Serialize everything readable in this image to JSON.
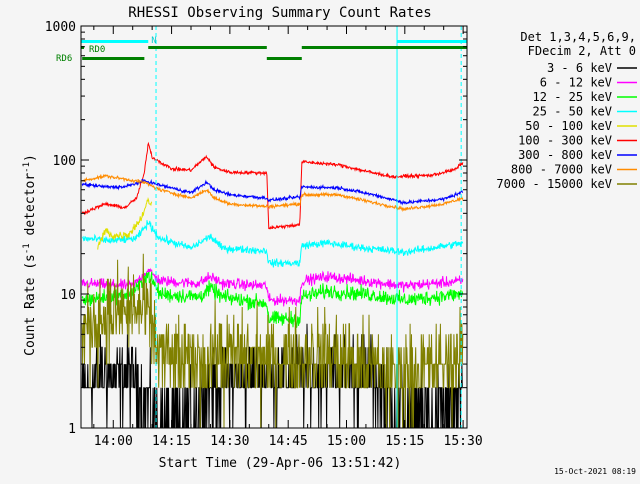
{
  "chart_data": {
    "type": "line",
    "title": "RHESSI Observing Summary Count Rates",
    "xlabel": "Start Time (29-Apr-06 13:51:42)",
    "ylabel_main": "Count Rate (s",
    "ylabel_sup1": "-1",
    "ylabel_mid": " detector",
    "ylabel_sup2": "-1",
    "ylabel_end": ")",
    "y_scale": "log",
    "ylim": [
      1,
      1000
    ],
    "xlim": [
      "13:51:42",
      "15:31:00"
    ],
    "y_ticks": [
      "1",
      "10",
      "100",
      "1000"
    ],
    "x_ticks": [
      "14:00",
      "14:15",
      "14:30",
      "14:45",
      "15:00",
      "15:15",
      "15:30"
    ],
    "legend_header": [
      "Det 1,3,4,5,6,9,",
      "FDecim 2, Att 0"
    ],
    "legend_placement": "right",
    "footer_timestamp": "15-Oct-2021 08:19",
    "flag_labels": {
      "n": "N",
      "rd0": "RD0",
      "rd6": "RD6"
    },
    "flags": {
      "night": [
        [
          "13:51:42",
          "14:09:00"
        ],
        [
          "15:13:00",
          "15:31:00"
        ]
      ],
      "rd0": [
        [
          "14:09:00",
          "14:39:30"
        ],
        [
          "14:48:30",
          "15:31:00"
        ]
      ],
      "rd6": [
        [
          "13:52:00",
          "14:08:00"
        ],
        [
          "14:39:30",
          "14:48:30"
        ]
      ]
    },
    "night_lines": [
      "13:51:42",
      "15:13:00"
    ],
    "day_lines": [
      "14:11:00",
      "15:29:30"
    ],
    "gap": [
      "14:39:30",
      "14:48:30"
    ],
    "series": [
      {
        "name": "3 - 6 keV",
        "color": "#000000",
        "noise": 0.35,
        "points": [
          [
            "13:52",
            2.0
          ],
          [
            "13:57",
            2.6
          ],
          [
            "14:05",
            2.4
          ],
          [
            "14:10",
            1.4
          ],
          [
            "14:15",
            1.1
          ],
          [
            "14:22",
            1.7
          ],
          [
            "14:30",
            2.4
          ],
          [
            "14:38",
            2.6
          ],
          [
            "14:39.5",
            2.5
          ],
          [
            "14:48.5",
            2.6
          ],
          [
            "15:00",
            2.8
          ],
          [
            "15:07",
            2.4
          ],
          [
            "15:12",
            1.6
          ],
          [
            "15:18",
            1.3
          ],
          [
            "15:30",
            1.6
          ]
        ]
      },
      {
        "name": "6 - 12 keV",
        "color": "#ff00ff",
        "noise": 0.05,
        "points": [
          [
            "13:52",
            12
          ],
          [
            "14:05",
            11.5
          ],
          [
            "14:09",
            15
          ],
          [
            "14:12",
            12.5
          ],
          [
            "14:22",
            12
          ],
          [
            "14:25",
            13.5
          ],
          [
            "14:28",
            12
          ],
          [
            "14:39.5",
            11.5
          ],
          [
            "14:40",
            9
          ],
          [
            "14:48",
            9
          ],
          [
            "14:48.5",
            12.5
          ],
          [
            "14:55",
            13.5
          ],
          [
            "15:05",
            12.5
          ],
          [
            "15:15",
            11.5
          ],
          [
            "15:30",
            12.5
          ]
        ]
      },
      {
        "name": "12 - 25 keV",
        "color": "#00ff00",
        "noise": 0.07,
        "points": [
          [
            "13:52",
            9
          ],
          [
            "14:05",
            10
          ],
          [
            "14:09",
            14
          ],
          [
            "14:12",
            10
          ],
          [
            "14:22",
            9.5
          ],
          [
            "14:25",
            11
          ],
          [
            "14:28",
            9.5
          ],
          [
            "14:39.5",
            8.5
          ],
          [
            "14:40",
            6.5
          ],
          [
            "14:48",
            6.5
          ],
          [
            "14:48.5",
            9.5
          ],
          [
            "14:55",
            10.5
          ],
          [
            "15:05",
            10
          ],
          [
            "15:15",
            9
          ],
          [
            "15:30",
            10
          ]
        ]
      },
      {
        "name": "25 - 50 keV",
        "color": "#00ffff",
        "noise": 0.035,
        "points": [
          [
            "13:52",
            26
          ],
          [
            "14:00",
            25
          ],
          [
            "14:06",
            26
          ],
          [
            "14:09",
            34
          ],
          [
            "14:12",
            26
          ],
          [
            "14:20",
            22
          ],
          [
            "14:25",
            27
          ],
          [
            "14:28",
            22
          ],
          [
            "14:39.5",
            21
          ],
          [
            "14:40",
            17
          ],
          [
            "14:48",
            17
          ],
          [
            "14:48.5",
            23
          ],
          [
            "14:55",
            24
          ],
          [
            "15:05",
            22
          ],
          [
            "15:15",
            20.5
          ],
          [
            "15:30",
            24
          ]
        ]
      },
      {
        "name": "50 - 100 keV",
        "color": "#e0e000",
        "noise": 0.04,
        "points": [
          [
            "13:56",
            22
          ],
          [
            "13:58",
            30
          ],
          [
            "14:00",
            27
          ],
          [
            "14:04",
            28
          ],
          [
            "14:07",
            36
          ],
          [
            "14:09",
            50
          ],
          [
            "14:10",
            46
          ]
        ]
      },
      {
        "name": "100 - 300 keV",
        "color": "#ff0000",
        "noise": 0.015,
        "points": [
          [
            "13:52",
            40
          ],
          [
            "13:58",
            47
          ],
          [
            "14:03",
            44
          ],
          [
            "14:06",
            52
          ],
          [
            "14:08",
            80
          ],
          [
            "14:09",
            135
          ],
          [
            "14:10",
            105
          ],
          [
            "14:15",
            86
          ],
          [
            "14:20",
            84
          ],
          [
            "14:24",
            106
          ],
          [
            "14:26",
            88
          ],
          [
            "14:30",
            81
          ],
          [
            "14:39.5",
            80
          ],
          [
            "14:40",
            31
          ],
          [
            "14:48",
            33
          ],
          [
            "14:48.5",
            97
          ],
          [
            "14:58",
            92
          ],
          [
            "15:07",
            80
          ],
          [
            "15:12",
            75
          ],
          [
            "15:22",
            77
          ],
          [
            "15:28",
            85
          ],
          [
            "15:30",
            96
          ]
        ]
      },
      {
        "name": "300 - 800 keV",
        "color": "#0000ff",
        "noise": 0.015,
        "points": [
          [
            "13:52",
            66
          ],
          [
            "13:58",
            63
          ],
          [
            "14:03",
            63
          ],
          [
            "14:08",
            70
          ],
          [
            "14:12",
            65
          ],
          [
            "14:20",
            57
          ],
          [
            "14:24",
            68
          ],
          [
            "14:26",
            60
          ],
          [
            "14:30",
            55
          ],
          [
            "14:39.5",
            52
          ],
          [
            "14:40",
            50
          ],
          [
            "14:48",
            53
          ],
          [
            "14:48.5",
            63
          ],
          [
            "14:58",
            62
          ],
          [
            "15:07",
            55
          ],
          [
            "15:15",
            48
          ],
          [
            "15:25",
            51
          ],
          [
            "15:30",
            58
          ]
        ]
      },
      {
        "name": "800 - 7000 keV",
        "color": "#ff8c00",
        "noise": 0.015,
        "points": [
          [
            "13:52",
            70
          ],
          [
            "13:58",
            76
          ],
          [
            "14:03",
            72
          ],
          [
            "14:08",
            68
          ],
          [
            "14:12",
            60
          ],
          [
            "14:20",
            52
          ],
          [
            "14:24",
            60
          ],
          [
            "14:26",
            52
          ],
          [
            "14:30",
            47
          ],
          [
            "14:39.5",
            45
          ],
          [
            "14:40",
            45
          ],
          [
            "14:48",
            47
          ],
          [
            "14:48.5",
            55
          ],
          [
            "14:58",
            55
          ],
          [
            "15:07",
            48
          ],
          [
            "15:15",
            43
          ],
          [
            "15:25",
            47
          ],
          [
            "15:30",
            52
          ]
        ]
      },
      {
        "name": "7000 - 15000 keV",
        "color": "#808000",
        "noise": 0.4,
        "points": [
          [
            "13:52",
            5.0
          ],
          [
            "13:56",
            6.5
          ],
          [
            "14:00",
            7.0
          ],
          [
            "14:05",
            8.0
          ],
          [
            "14:09",
            7.0
          ],
          [
            "14:12",
            3.5
          ],
          [
            "14:20",
            3.0
          ],
          [
            "14:25",
            3.5
          ],
          [
            "14:30",
            3.5
          ],
          [
            "14:38",
            3.5
          ],
          [
            "14:39.5",
            3.0
          ],
          [
            "14:48.5",
            3.5
          ],
          [
            "14:55",
            3.5
          ],
          [
            "15:05",
            3.0
          ],
          [
            "15:12",
            2.5
          ],
          [
            "15:20",
            2.7
          ],
          [
            "15:28",
            3.0
          ],
          [
            "15:30",
            5.0
          ]
        ]
      }
    ]
  }
}
